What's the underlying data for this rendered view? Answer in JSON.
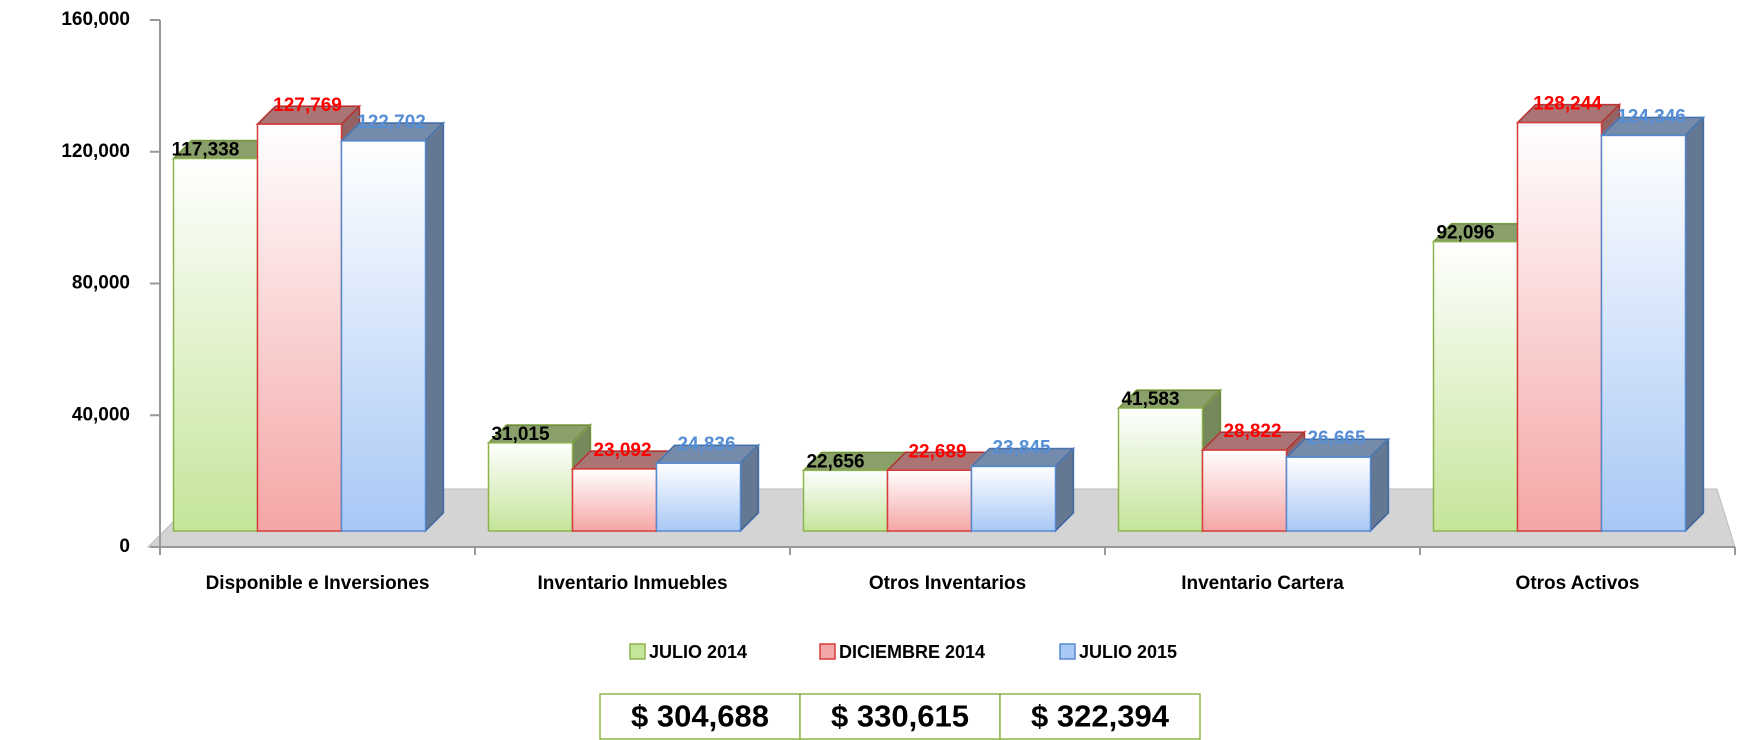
{
  "chart_data": {
    "type": "bar3d",
    "categories": [
      "Disponible e Inversiones",
      "Inventario Inmuebles",
      "Otros Inventarios",
      "Inventario Cartera",
      "Otros Activos"
    ],
    "series": [
      {
        "name": "JULIO 2014",
        "color": "#c4e59a",
        "edge_color": "#8db44c",
        "label_color": "#000000",
        "values": [
          117338,
          31015,
          22656,
          41583,
          92096
        ],
        "value_labels": [
          "117,338",
          "31,015",
          "22,656",
          "41,583",
          "92,096"
        ]
      },
      {
        "name": "DICIEMBRE 2014",
        "color": "#f5a6a6",
        "edge_color": "#d83b3b",
        "label_color": "#ff0000",
        "values": [
          127769,
          23092,
          22689,
          28822,
          128244
        ],
        "value_labels": [
          "127,769",
          "23,092",
          "22,689",
          "28,822",
          "128,244"
        ]
      },
      {
        "name": "JULIO 2015",
        "color": "#a8c8f5",
        "edge_color": "#5689d0",
        "label_color": "#558ed5",
        "values": [
          122702,
          24836,
          23845,
          26665,
          124346
        ],
        "value_labels": [
          "122,702",
          "24,836",
          "23,845",
          "26,665",
          "124,346"
        ]
      }
    ],
    "ylim": [
      0,
      160000
    ],
    "yticks": [
      {
        "value": 0,
        "label": "0"
      },
      {
        "value": 40000,
        "label": "40,000"
      },
      {
        "value": 80000,
        "label": "80,000"
      },
      {
        "value": 120000,
        "label": "120,000"
      },
      {
        "value": 160000,
        "label": "160,000"
      }
    ],
    "legend": "bottom",
    "totals": [
      "$ 304,688",
      "$ 330,615",
      "$ 322,394"
    ]
  }
}
